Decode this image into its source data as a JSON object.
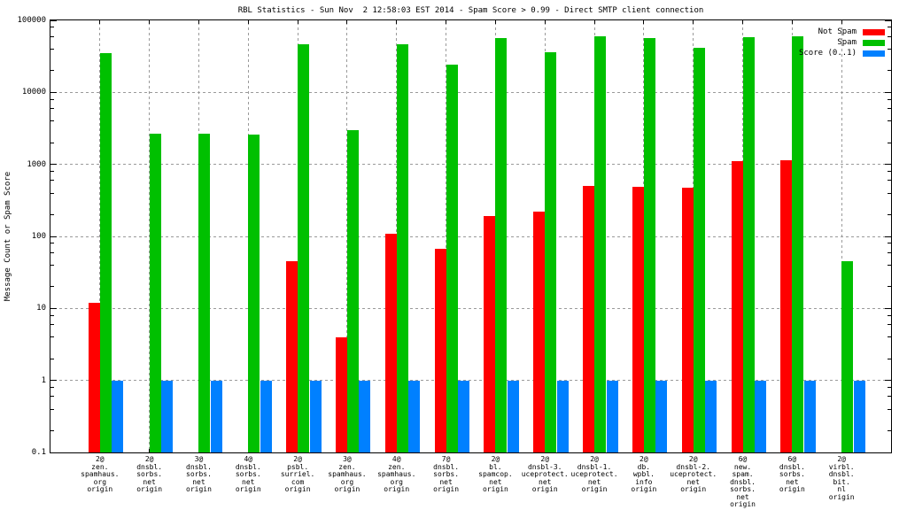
{
  "chart_data": {
    "type": "bar",
    "title": "RBL Statistics - Sun Nov  2 12:58:03 EST 2014 - Spam Score > 0.99 - Direct SMTP client connection",
    "ylabel": "Message Count or Spam Score",
    "yscale": "log",
    "ylim": [
      0.1,
      100000
    ],
    "ytick_labels": [
      "0.1",
      "1",
      "10",
      "100",
      "1000",
      "10000",
      "100000"
    ],
    "grid": true,
    "legend_position": "top-right-inside",
    "background_color": "#ffffff",
    "grid_color": "#9a9a9a",
    "categories": [
      [
        "2@",
        "zen.",
        "spamhaus.",
        "org",
        "origin"
      ],
      [
        "2@",
        "dnsbl.",
        "sorbs.",
        "net",
        "origin"
      ],
      [
        "3@",
        "dnsbl.",
        "sorbs.",
        "net",
        "origin"
      ],
      [
        "4@",
        "dnsbl.",
        "sorbs.",
        "net",
        "origin"
      ],
      [
        "2@",
        "psbl.",
        "surriel.",
        "com",
        "origin"
      ],
      [
        "3@",
        "zen.",
        "spamhaus.",
        "org",
        "origin"
      ],
      [
        "4@",
        "zen.",
        "spamhaus.",
        "org",
        "origin"
      ],
      [
        "7@",
        "dnsbl.",
        "sorbs.",
        "net",
        "origin"
      ],
      [
        "2@",
        "bl.",
        "spamcop.",
        "net",
        "origin"
      ],
      [
        "2@",
        "dnsbl-3.",
        "uceprotect.",
        "net",
        "origin"
      ],
      [
        "2@",
        "dnsbl-1.",
        "uceprotect.",
        "net",
        "origin"
      ],
      [
        "2@",
        "db.",
        "wpbl.",
        "info",
        "origin"
      ],
      [
        "2@",
        "dnsbl-2.",
        "uceprotect.",
        "net",
        "origin"
      ],
      [
        "6@",
        "new.",
        "spam.",
        "dnsbl.",
        "sorbs.",
        "net",
        "origin"
      ],
      [
        "6@",
        "dnsbl.",
        "sorbs.",
        "net",
        "origin"
      ],
      [
        "2@",
        "virbl.",
        "dnsbl.",
        "bit.",
        "nl",
        "origin"
      ]
    ],
    "series": [
      {
        "name": "Not Spam",
        "color": "#ff0000",
        "values": [
          12,
          null,
          null,
          null,
          45,
          4,
          110,
          67,
          190,
          220,
          500,
          490,
          480,
          1100,
          1150,
          null
        ]
      },
      {
        "name": "Spam",
        "color": "#00c000",
        "values": [
          35000,
          2700,
          2700,
          2600,
          47000,
          3000,
          47000,
          24000,
          57000,
          36000,
          60000,
          57000,
          42000,
          58000,
          60000,
          45
        ]
      },
      {
        "name": "Score (0..1)",
        "color": "#0080ff",
        "values": [
          1,
          1,
          1,
          1,
          1,
          1,
          1,
          1,
          1,
          1,
          1,
          1,
          1,
          1,
          1,
          1
        ]
      }
    ]
  }
}
